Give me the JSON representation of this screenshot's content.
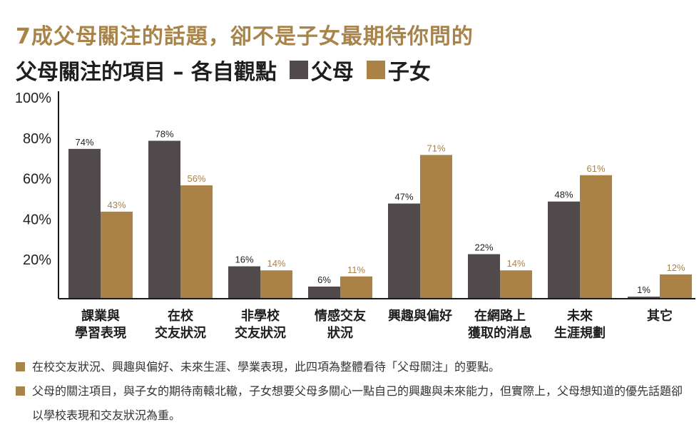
{
  "header": {
    "title": "7成父母關注的話題，卻不是子女最期待你問的",
    "subtitle": "父母關注的項目 – 各自觀點"
  },
  "colors": {
    "parents": "#504a4c",
    "children": "#ab8246",
    "title": "#a8844b"
  },
  "chart_data": {
    "type": "bar",
    "categories": [
      [
        "課業與",
        "學習表現"
      ],
      [
        "在校",
        "交友狀況"
      ],
      [
        "非學校",
        "交友狀況"
      ],
      [
        "情感交友",
        "狀況"
      ],
      [
        "興趣與偏好"
      ],
      [
        "在網路上",
        "獲取的消息"
      ],
      [
        "未來",
        "生涯規劃"
      ],
      [
        "其它"
      ]
    ],
    "series": [
      {
        "name": "父母",
        "values": [
          74,
          78,
          16,
          6,
          47,
          22,
          48,
          1
        ]
      },
      {
        "name": "子女",
        "values": [
          43,
          56,
          14,
          11,
          71,
          14,
          61,
          12
        ]
      }
    ],
    "data_labels": [
      [
        "74%",
        "78%",
        "16%",
        "6%",
        "47%",
        "22%",
        "48%",
        "1%"
      ],
      [
        "43%",
        "56%",
        "14%",
        "11%",
        "71%",
        "14%",
        "61%",
        "12%"
      ]
    ],
    "yticks": [
      "20%",
      "40%",
      "60%",
      "80%",
      "100%"
    ],
    "ylim": [
      0,
      100
    ],
    "grid": false,
    "legend": "top"
  },
  "notes": [
    "在校交友狀況、興趣與偏好、未來生涯、學業表現，此四項為整體看待「父母關注」的要點。",
    "父母的關注項目，與子女的期待南轅北轍，子女想要父母多關心一點自己的興趣與未來能力，但實際上，父母想知道的優先話題卻以學校表現和交友狀況為重。"
  ]
}
